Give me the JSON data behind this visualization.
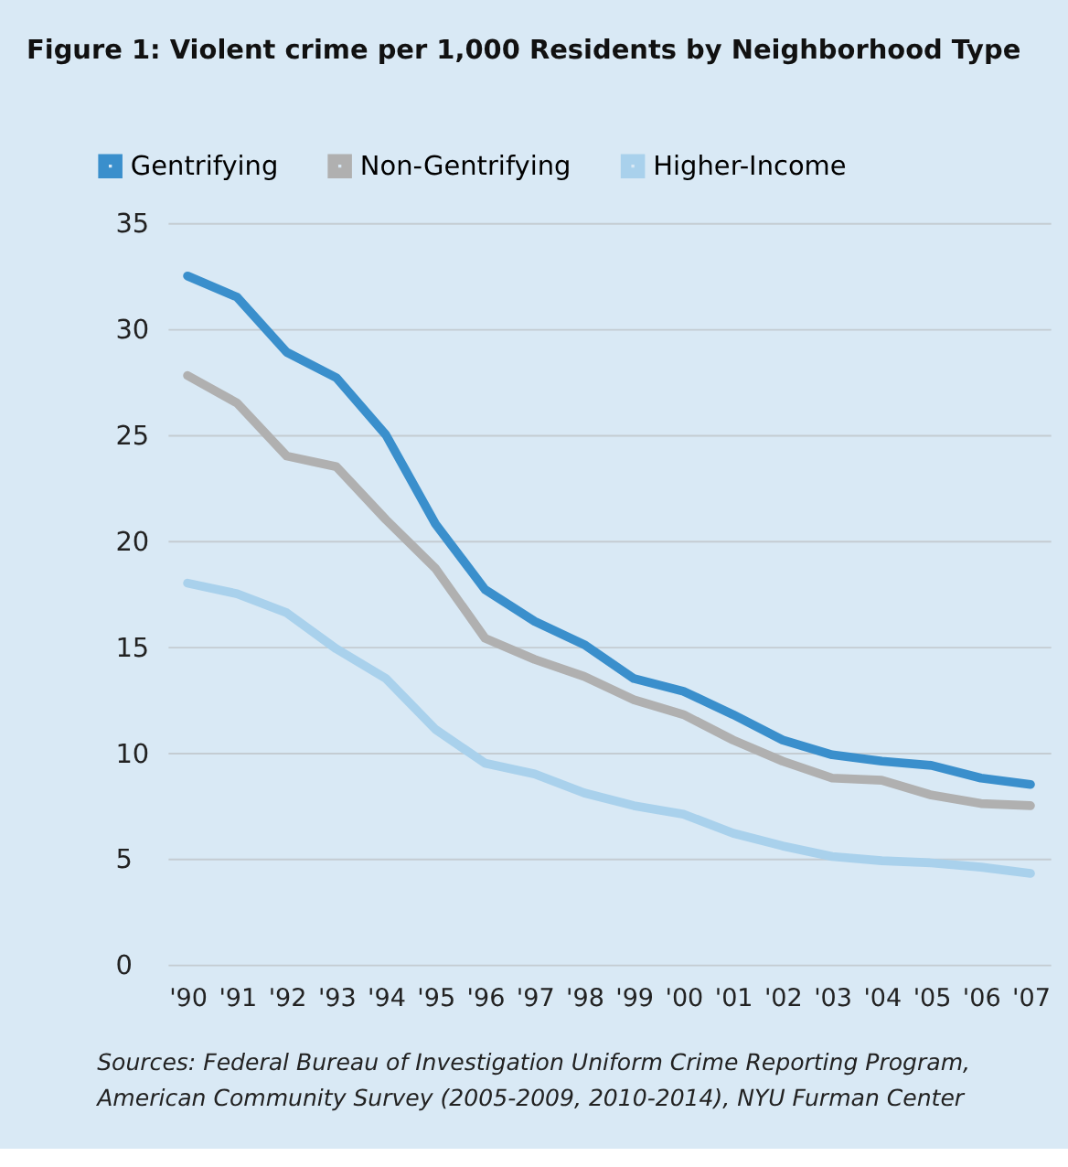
{
  "chart_data": {
    "type": "line",
    "title": "Figure 1: Violent crime per 1,000 Residents by Neighborhood Type",
    "categories": [
      "'90",
      "'91",
      "'92",
      "'93",
      "'94",
      "'95",
      "'96",
      "'97",
      "'98",
      "'99",
      "'00",
      "'01",
      "'02",
      "'03",
      "'04",
      "'05",
      "'06",
      "'07"
    ],
    "series": [
      {
        "name": "Gentrifying",
        "color": "#3a8fcc",
        "values": [
          32.5,
          31.5,
          28.9,
          27.7,
          25.0,
          20.8,
          17.7,
          16.2,
          15.1,
          13.5,
          12.9,
          11.8,
          10.6,
          9.9,
          9.6,
          9.4,
          8.8,
          8.5
        ]
      },
      {
        "name": "Non-Gentrifying",
        "color": "#b0b0b0",
        "values": [
          27.8,
          26.5,
          24.0,
          23.5,
          21.0,
          18.7,
          15.4,
          14.4,
          13.6,
          12.5,
          11.8,
          10.6,
          9.6,
          8.8,
          8.7,
          8.0,
          7.6,
          7.5
        ]
      },
      {
        "name": "Higher-Income",
        "color": "#a9d1ec",
        "values": [
          18.0,
          17.5,
          16.6,
          14.9,
          13.5,
          11.1,
          9.5,
          9.0,
          8.1,
          7.5,
          7.1,
          6.2,
          5.6,
          5.1,
          4.9,
          4.8,
          4.6,
          4.3
        ]
      }
    ],
    "ylim": [
      0,
      35
    ],
    "yticks": [
      0,
      5,
      10,
      15,
      20,
      25,
      30,
      35
    ],
    "grid": "y",
    "legend": "top left",
    "marker": "none",
    "line_style": "solid",
    "annotations": [
      "Sources: Federal Bureau of Investigation Uniform Crime Reporting Program,",
      "American Community Survey (2005-2009, 2010-2014), NYU Furman Center"
    ]
  }
}
